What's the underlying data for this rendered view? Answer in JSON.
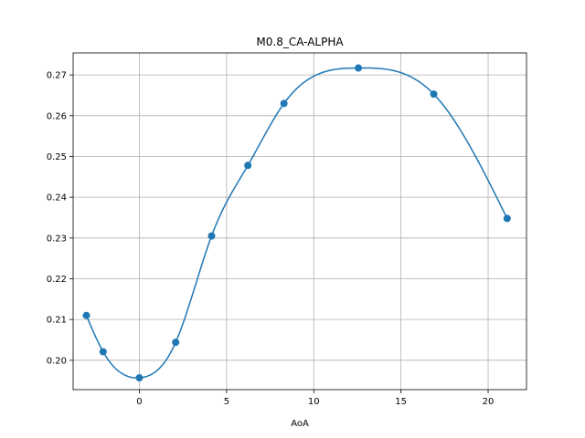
{
  "chart_data": {
    "type": "line",
    "title": "M0.8_CA-ALPHA",
    "xlabel": "AoA",
    "ylabel": "",
    "xlim": [
      -3.8,
      22.2
    ],
    "ylim": [
      0.1928,
      0.2754
    ],
    "xticks": [
      0,
      5,
      10,
      15,
      20
    ],
    "yticks": [
      0.2,
      0.21,
      0.22,
      0.23,
      0.24,
      0.25,
      0.26,
      0.27
    ],
    "xtick_labels": [
      "0",
      "5",
      "10",
      "15",
      "20"
    ],
    "ytick_labels": [
      "0.20",
      "0.21",
      "0.22",
      "0.23",
      "0.24",
      "0.25",
      "0.26",
      "0.27"
    ],
    "grid": true,
    "series": [
      {
        "color": "#1f77b4",
        "markers": true,
        "smooth_curve": true,
        "x": [
          -3.04,
          -2.08,
          0.0,
          2.08,
          4.14,
          6.22,
          8.29,
          12.56,
          16.88,
          21.09
        ],
        "y": [
          0.211,
          0.2021,
          0.1957,
          0.2044,
          0.2305,
          0.2478,
          0.263,
          0.2717,
          0.2653,
          0.2348
        ]
      }
    ]
  }
}
